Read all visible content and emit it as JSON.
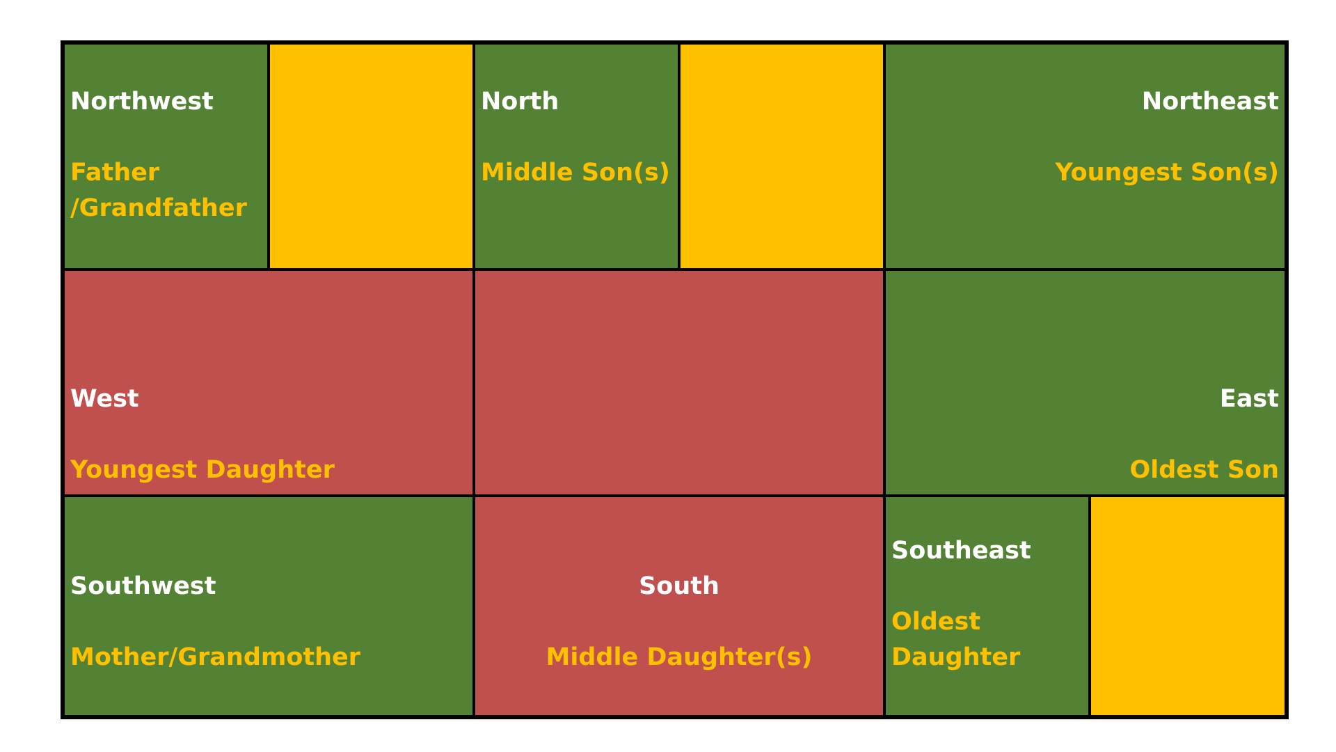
{
  "colors": {
    "green": "#548235",
    "red": "#c0504d",
    "yellow": "#ffc000",
    "direction_text": "#ffffff",
    "role_text": "#ffc000"
  },
  "cells": {
    "northwest": {
      "direction": "Northwest",
      "role": "Father\n/Grandfather"
    },
    "north": {
      "direction": "North",
      "role": "Middle Son(s)"
    },
    "northeast": {
      "direction": "Northeast",
      "role": "Youngest Son(s)"
    },
    "west": {
      "direction": "West",
      "role": "Youngest Daughter"
    },
    "east": {
      "direction": "East",
      "role": "Oldest Son"
    },
    "southwest": {
      "direction": "Southwest",
      "role": "Mother/Grandmother"
    },
    "south": {
      "direction": "South",
      "role": "Middle Daughter(s)"
    },
    "southeast": {
      "direction": "Southeast",
      "role": "Oldest\nDaughter"
    }
  }
}
